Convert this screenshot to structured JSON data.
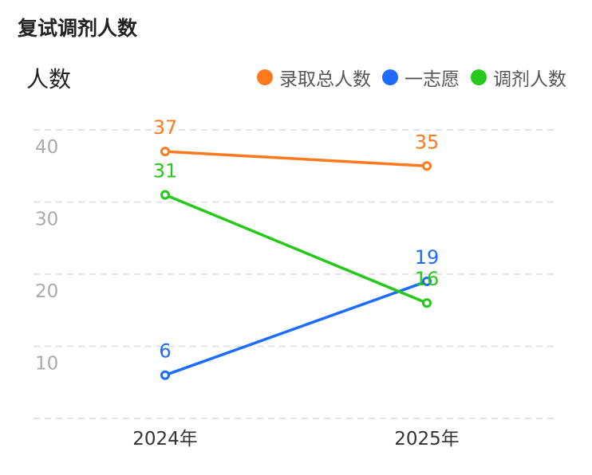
{
  "chart_data": {
    "type": "line",
    "title": "复试调剂人数",
    "ylabel": "人数",
    "xlabel": "",
    "categories": [
      "2024年",
      "2025年"
    ],
    "ylim": [
      0,
      40
    ],
    "yticks": [
      10,
      20,
      30,
      40
    ],
    "grid": true,
    "legend_position": "top-right",
    "series": [
      {
        "name": "录取总人数",
        "color": "#FF7A1C",
        "values": [
          37,
          35
        ]
      },
      {
        "name": "一志愿",
        "color": "#1D6CFF",
        "values": [
          6,
          19
        ]
      },
      {
        "name": "调剂人数",
        "color": "#26C919",
        "values": [
          31,
          16
        ]
      }
    ]
  }
}
